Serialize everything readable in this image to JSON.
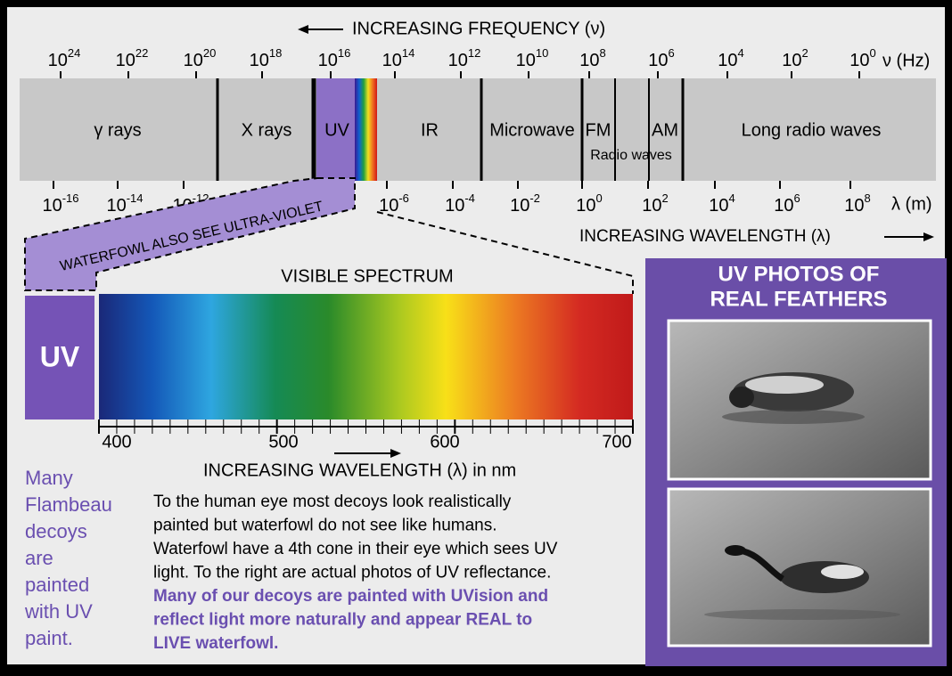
{
  "frequency_header": "INCREASING FREQUENCY (ν)",
  "frequency_ticks": [
    {
      "base": "10",
      "exp": "24"
    },
    {
      "base": "10",
      "exp": "22"
    },
    {
      "base": "10",
      "exp": "20"
    },
    {
      "base": "10",
      "exp": "18"
    },
    {
      "base": "10",
      "exp": "16"
    },
    {
      "base": "10",
      "exp": "14"
    },
    {
      "base": "10",
      "exp": "12"
    },
    {
      "base": "10",
      "exp": "10"
    },
    {
      "base": "10",
      "exp": "8"
    },
    {
      "base": "10",
      "exp": "6"
    },
    {
      "base": "10",
      "exp": "4"
    },
    {
      "base": "10",
      "exp": "2"
    },
    {
      "base": "10",
      "exp": "0"
    }
  ],
  "frequency_unit": "ν (Hz)",
  "bands": [
    "γ rays",
    "X rays",
    "UV",
    "IR",
    "Microwave",
    "FM",
    "AM",
    "Long radio waves"
  ],
  "radio_label": "Radio waves",
  "wavelength_ticks": [
    {
      "base": "10",
      "exp": "-16"
    },
    {
      "base": "10",
      "exp": "-14"
    },
    {
      "base": "10",
      "exp": "-12"
    },
    {
      "base": "10",
      "exp": "-6"
    },
    {
      "base": "10",
      "exp": "-4"
    },
    {
      "base": "10",
      "exp": "-2"
    },
    {
      "base": "10",
      "exp": "0"
    },
    {
      "base": "10",
      "exp": "2"
    },
    {
      "base": "10",
      "exp": "4"
    },
    {
      "base": "10",
      "exp": "6"
    },
    {
      "base": "10",
      "exp": "8"
    }
  ],
  "wavelength_unit": "λ (m)",
  "wavelength_header": "INCREASING WAVELENGTH (λ)",
  "banner": "WATERFOWL ALSO SEE ULTRA-VIOLET",
  "visible_title": "VISIBLE SPECTRUM",
  "uv_box": "UV",
  "nm_ticks": [
    "400",
    "500",
    "600",
    "700"
  ],
  "nm_label": "INCREASING WAVELENGTH (λ) in nm",
  "side_note": [
    "Many",
    "Flambeau",
    "decoys",
    "are",
    "painted",
    "with UV",
    "paint."
  ],
  "body": [
    "To the human eye most decoys look realistically",
    "painted but waterfowl do not see like humans.",
    "Waterfowl have a 4th cone in their eye which sees UV",
    "light. To the right are actual photos of UV reflectance."
  ],
  "emphasis": [
    "Many of our decoys are painted with UVision and",
    "reflect light more naturally and appear REAL to",
    "LIVE waterfowl."
  ],
  "panel_title": [
    "UV PHOTOS OF",
    "REAL FEATHERS"
  ]
}
